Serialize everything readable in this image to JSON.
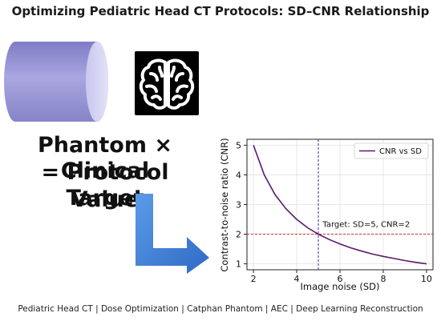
{
  "title": "Optimizing Pediatric Head CT Protocols: SD–CNR Relationship",
  "icons": {
    "phantom": "cylinder-phantom-icon",
    "clinical": "brain-icon",
    "arrow": "l-arrow-icon"
  },
  "headline": {
    "line1": "Phantom × Clinical",
    "line2": "= Protocol Target",
    "line3": "Value"
  },
  "footer": "Pediatric Head CT | Dose Optimization | Catphan Phantom | AEC | Deep Learning Reconstruction",
  "colors": {
    "curve": "#5a1a6e",
    "target_line": "#cc3333",
    "vline": "#3333aa",
    "cylinder": "#9b98d6",
    "arrow": "#3a7bd5"
  },
  "chart_data": {
    "type": "line",
    "xlabel": "Image noise (SD)",
    "ylabel": "Contrast-to-noise ratio (CNR)",
    "xlim": [
      1.7,
      10.3
    ],
    "ylim": [
      0.8,
      5.2
    ],
    "xticks": [
      2,
      4,
      6,
      8,
      10
    ],
    "yticks": [
      1,
      2,
      3,
      4,
      5
    ],
    "grid": true,
    "legend_position": "upper-right",
    "series": [
      {
        "name": "CNR vs SD",
        "x": [
          2,
          2.5,
          3,
          3.5,
          4,
          4.5,
          5,
          5.5,
          6,
          6.5,
          7,
          7.5,
          8,
          8.5,
          9,
          9.5,
          10
        ],
        "y": [
          5.0,
          4.0,
          3.33,
          2.86,
          2.5,
          2.22,
          2.0,
          1.82,
          1.67,
          1.54,
          1.43,
          1.33,
          1.25,
          1.18,
          1.11,
          1.05,
          1.0
        ]
      }
    ],
    "hline": {
      "y": 2
    },
    "vline": {
      "x": 5
    },
    "annotation": {
      "text": "Target: SD=5, CNR=2",
      "x": 5.2,
      "y": 2.25
    }
  }
}
